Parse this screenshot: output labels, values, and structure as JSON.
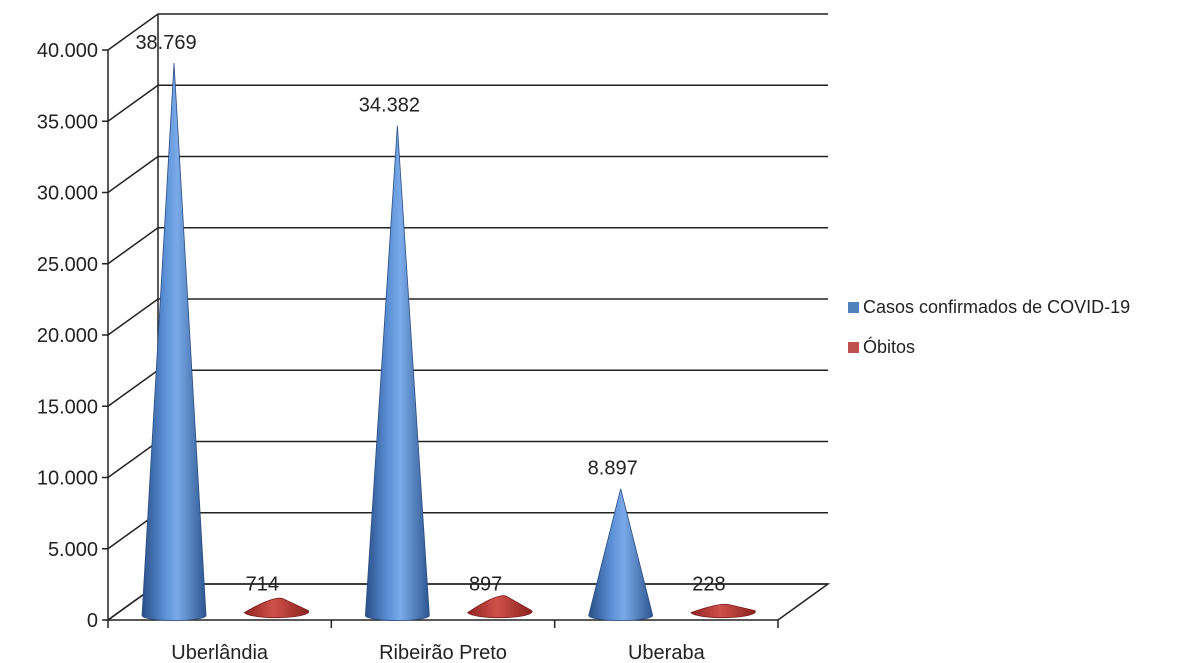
{
  "chart_data": {
    "type": "bar",
    "style": "3d-cone",
    "categories": [
      "Uberlândia",
      "Ribeirão Preto",
      "Uberaba"
    ],
    "series": [
      {
        "name": "Casos confirmados de COVID-19",
        "values": [
          38769,
          34382,
          8897
        ],
        "labels": [
          "38.769",
          "34.382",
          "8.897"
        ],
        "color": "#4f81bd"
      },
      {
        "name": "Óbitos",
        "values": [
          714,
          897,
          228
        ],
        "labels": [
          "714",
          "897",
          "228"
        ],
        "color": "#c0504d"
      }
    ],
    "ylim": [
      0,
      40000
    ],
    "yticks": [
      0,
      5000,
      10000,
      15000,
      20000,
      25000,
      30000,
      35000,
      40000
    ],
    "ytick_labels": [
      "0",
      "5.000",
      "10.000",
      "15.000",
      "20.000",
      "25.000",
      "30.000",
      "35.000",
      "40.000"
    ],
    "grid": true,
    "legend_position": "right"
  }
}
